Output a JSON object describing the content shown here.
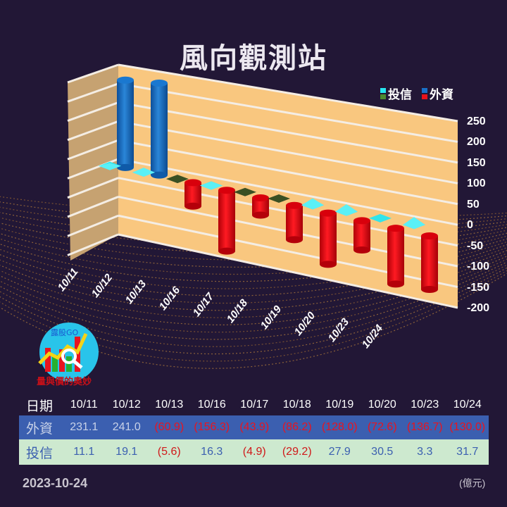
{
  "title": "風向觀測站",
  "legend": {
    "items": [
      {
        "label": "投信",
        "colors": [
          "#27e6f0",
          "#4c8a30"
        ]
      },
      {
        "label": "外資",
        "colors": [
          "#1870c8",
          "#e8121a"
        ]
      }
    ]
  },
  "chart_data": {
    "type": "bar",
    "title": "風向觀測站",
    "subtitle": "",
    "xlabel": "",
    "ylabel": "",
    "ylim": [
      -200,
      250
    ],
    "yticks": [
      250,
      200,
      150,
      100,
      50,
      0,
      -50,
      -100,
      -150,
      -200
    ],
    "grid": true,
    "legend_position": "top-right",
    "unit": "億元",
    "categories": [
      "10/11",
      "10/12",
      "10/13",
      "10/16",
      "10/17",
      "10/18",
      "10/19",
      "10/20",
      "10/23",
      "10/24"
    ],
    "series": [
      {
        "name": "外資",
        "shape": "cylinder",
        "positive_color": "#1870c8",
        "negative_color": "#e8121a",
        "values": [
          231.1,
          241.0,
          -60.9,
          -156.3,
          -43.9,
          -86.2,
          -128.0,
          -72.6,
          -136.7,
          -130.0
        ]
      },
      {
        "name": "投信",
        "shape": "pyramid",
        "positive_color": "#27e6f0",
        "negative_color": "#2f4a1f",
        "values": [
          11.1,
          19.1,
          -5.6,
          16.3,
          -4.9,
          -29.2,
          27.9,
          30.5,
          3.3,
          31.7
        ]
      }
    ]
  },
  "table": {
    "header_label": "日期",
    "dates": [
      "10/11",
      "10/12",
      "10/13",
      "10/16",
      "10/17",
      "10/18",
      "10/19",
      "10/20",
      "10/23",
      "10/24"
    ],
    "rows": [
      {
        "label": "外資",
        "values": [
          "231.1",
          "241.0",
          "(60.9)",
          "(156.3)",
          "(43.9)",
          "(86.2)",
          "(128.0)",
          "(72.6)",
          "(136.7)",
          "(130.0)"
        ]
      },
      {
        "label": "投信",
        "values": [
          "11.1",
          "19.1",
          "(5.6)",
          "16.3",
          "(4.9)",
          "(29.2)",
          "27.9",
          "30.5",
          "3.3",
          "31.7"
        ]
      }
    ]
  },
  "footer": {
    "date": "2023-10-24",
    "unit": "(億元)"
  },
  "logo": {
    "brand": "露股GO",
    "tagline": "量與價的奧妙"
  },
  "colors": {
    "background": "#221736",
    "wall": "#f9c77f",
    "side_wall": "#c4a070",
    "fx_row": "#3b5fb0",
    "it_row": "#cde9cf",
    "negative_text": "#d0191a"
  }
}
